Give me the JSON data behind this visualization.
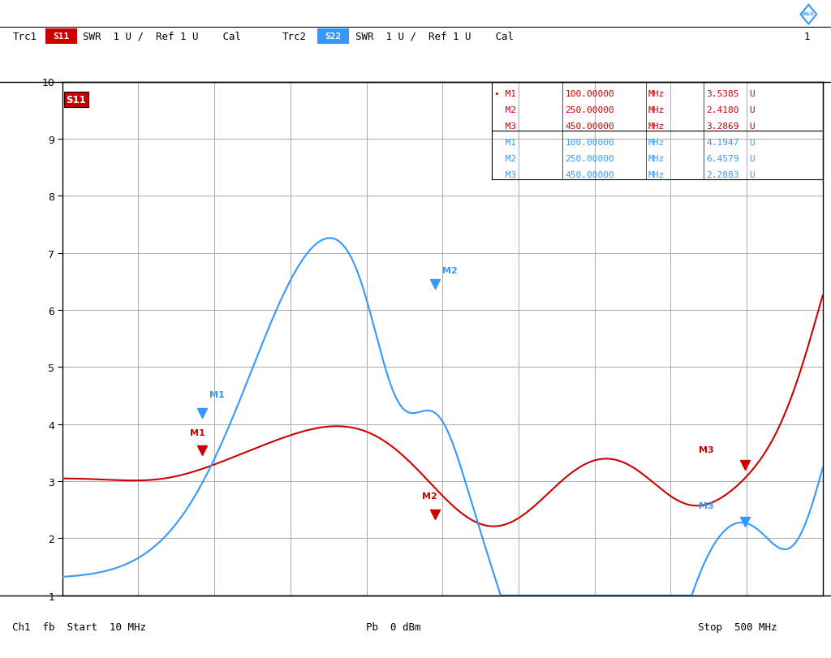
{
  "ymin": 1,
  "ymax": 10,
  "xmin": 10,
  "xmax": 500,
  "yticks": [
    1,
    2,
    3,
    4,
    5,
    6,
    7,
    8,
    9,
    10
  ],
  "grid_color": "#aaaaaa",
  "bg_color": "#ffffff",
  "s11_color": "#cc0000",
  "s22_color": "#3399ff",
  "marker_red_M1": [
    100,
    3.5385
  ],
  "marker_red_M2": [
    250,
    2.418
  ],
  "marker_red_M3": [
    450,
    3.2869
  ],
  "marker_blue_M1": [
    100,
    4.1947
  ],
  "marker_blue_M2": [
    250,
    6.4579
  ],
  "marker_blue_M3": [
    450,
    2.2883
  ]
}
